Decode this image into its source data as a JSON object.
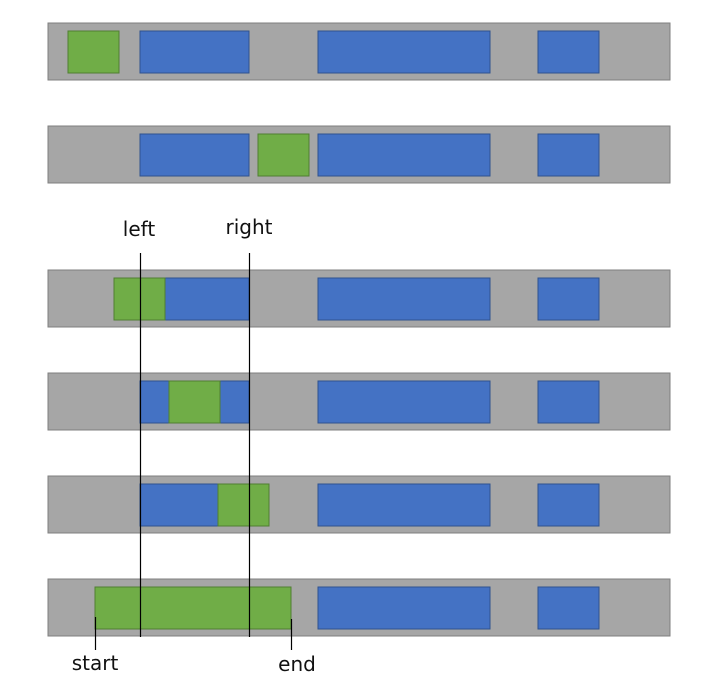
{
  "colors": {
    "track": "#A6A6A6",
    "track_border": "#7F7F7F",
    "occupied": "#4472C4",
    "occupied_border": "#2F528F",
    "new_interval": "#70AD47",
    "new_interval_border": "#507E32",
    "line": "#000000"
  },
  "labels": {
    "left": "left",
    "right": "right",
    "start": "start",
    "end": "end"
  }
}
